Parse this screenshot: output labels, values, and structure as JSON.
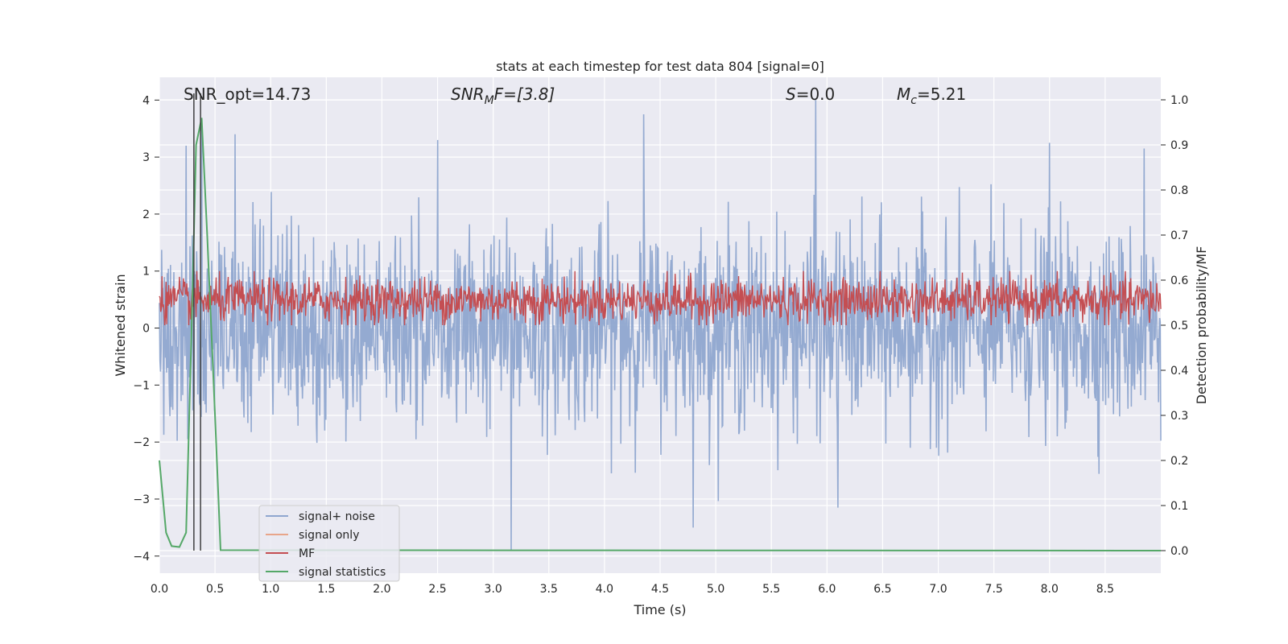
{
  "chart_data": {
    "type": "line",
    "title": "stats at each timestep for test data 804 [signal=0]",
    "xlabel": "Time (s)",
    "ylabel": "Whitened strain",
    "ylabel_right": "Detection probability/MF",
    "xlim": [
      0.0,
      9.0
    ],
    "ylim": [
      -4.3,
      4.4
    ],
    "ylim_right": [
      -0.05,
      1.05
    ],
    "xticks": [
      "0.0",
      "0.5",
      "1.0",
      "1.5",
      "2.0",
      "2.5",
      "3.0",
      "3.5",
      "4.0",
      "4.5",
      "5.0",
      "5.5",
      "6.0",
      "6.5",
      "7.0",
      "7.5",
      "8.0",
      "8.5"
    ],
    "yticks": [
      "4",
      "3",
      "2",
      "1",
      "0",
      "−1",
      "−2",
      "−3",
      "−4"
    ],
    "yticks_right": [
      "1.0",
      "0.9",
      "0.8",
      "0.7",
      "0.6",
      "0.5",
      "0.4",
      "0.3",
      "0.2",
      "0.1",
      "0.0"
    ],
    "grid": true,
    "legend_placement": "lower-left",
    "annotations": {
      "snr_opt": "SNR_opt=14.73",
      "snr_mf_base": "SNR",
      "snr_mf_sub": "M",
      "snr_mf_rest": "F=[3.8]",
      "s_label": "S",
      "s_value": "=0.0",
      "mc_label": "M",
      "mc_sub": "c",
      "mc_value": "=5.21"
    },
    "vlines_x": [
      0.31,
      0.37
    ],
    "series": [
      {
        "name": "signal+ noise",
        "color": "#8fa6cf",
        "axis": "left",
        "noise_sigma": 1.0,
        "peaks": [
          {
            "x": 0.24,
            "y": 3.2
          },
          {
            "x": 0.38,
            "y": 3.6
          },
          {
            "x": 0.68,
            "y": 3.4
          },
          {
            "x": 2.5,
            "y": 3.3
          },
          {
            "x": 4.35,
            "y": 3.75
          },
          {
            "x": 5.9,
            "y": 4.0
          },
          {
            "x": 8.0,
            "y": 3.25
          },
          {
            "x": 8.85,
            "y": 3.15
          },
          {
            "x": 3.16,
            "y": -3.9
          },
          {
            "x": 4.8,
            "y": -3.5
          },
          {
            "x": 6.1,
            "y": -3.15
          }
        ]
      },
      {
        "name": "signal only",
        "color": "#e8a58a",
        "axis": "left",
        "values": []
      },
      {
        "name": "MF",
        "color": "#c44e52",
        "axis": "right",
        "baseline": 0.555,
        "amplitude": 0.045
      },
      {
        "name": "signal statistics",
        "color": "#55a868",
        "axis": "right",
        "x": [
          0.0,
          0.06,
          0.11,
          0.18,
          0.24,
          0.29,
          0.33,
          0.38,
          0.43,
          0.5,
          0.55,
          9.0
        ],
        "values": [
          0.2,
          0.04,
          0.01,
          0.008,
          0.04,
          0.5,
          0.9,
          0.96,
          0.7,
          0.3,
          0.001,
          0.0
        ]
      }
    ]
  }
}
